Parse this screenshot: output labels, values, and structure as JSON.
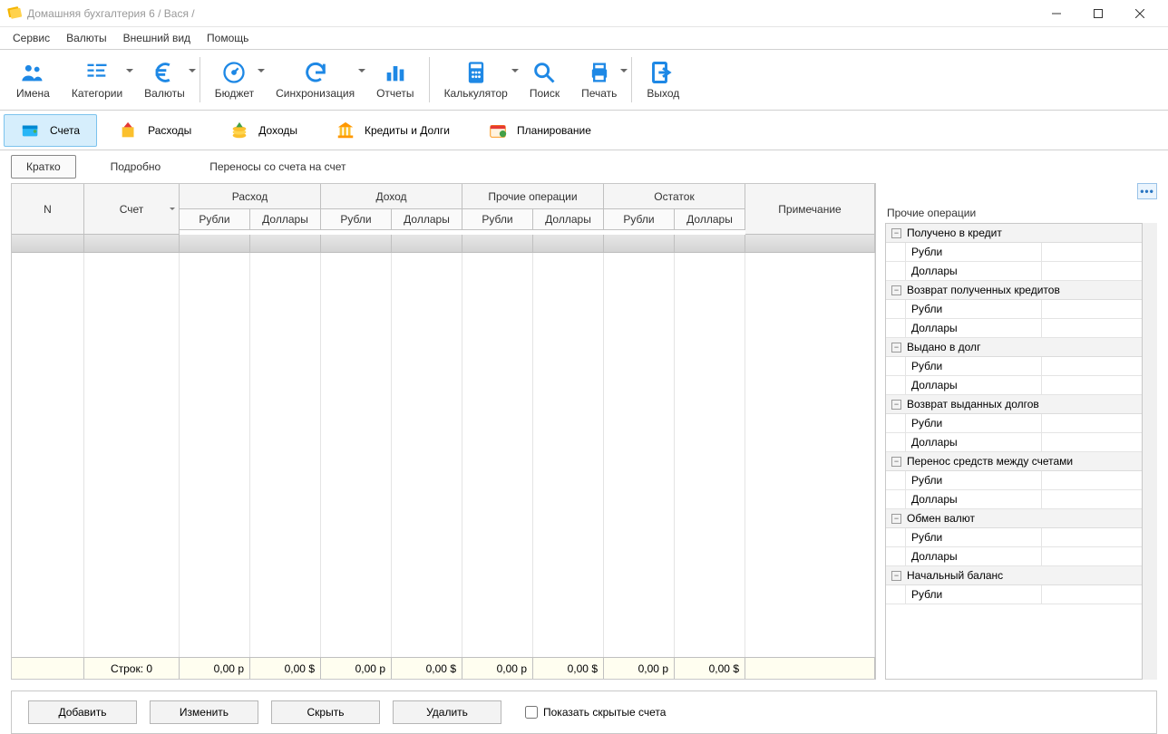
{
  "window": {
    "title": "Домашняя бухгалтерия 6  / Вася /"
  },
  "menus": [
    "Сервис",
    "Валюты",
    "Внешний вид",
    "Помощь"
  ],
  "toolbar": {
    "names": {
      "label": "Имена",
      "color": "#1e88e5"
    },
    "cats": {
      "label": "Категории",
      "color": "#1e88e5"
    },
    "curr": {
      "label": "Валюты",
      "color": "#1e88e5"
    },
    "budget": {
      "label": "Бюджет",
      "color": "#1e88e5"
    },
    "sync": {
      "label": "Синхронизация",
      "color": "#1e88e5"
    },
    "reports": {
      "label": "Отчеты",
      "color": "#1e88e5"
    },
    "calc": {
      "label": "Калькулятор",
      "color": "#1e88e5"
    },
    "search": {
      "label": "Поиск",
      "color": "#1e88e5"
    },
    "print": {
      "label": "Печать",
      "color": "#1e88e5"
    },
    "exit": {
      "label": "Выход",
      "color": "#1e88e5"
    }
  },
  "navtabs": {
    "accounts": "Счета",
    "expenses": "Расходы",
    "income": "Доходы",
    "credits": "Кредиты и Долги",
    "planning": "Планирование"
  },
  "subtabs": {
    "brief": "Кратко",
    "detail": "Подробно",
    "transfers": "Переносы со счета на счет"
  },
  "grid": {
    "cols_top": {
      "n": "N",
      "acct": "Счет",
      "expense": "Расход",
      "income": "Доход",
      "other": "Прочие операции",
      "balance": "Остаток",
      "note": "Примечание"
    },
    "sub_rub": "Рубли",
    "sub_usd": "Доллары",
    "footer": {
      "rows_label": "Строк: 0",
      "vals": [
        "0,00 р",
        "0,00 $",
        "0,00 р",
        "0,00 $",
        "0,00 р",
        "0,00 $",
        "0,00 р",
        "0,00 $"
      ]
    }
  },
  "side": {
    "title": "Прочие операции",
    "currency_rub": "Рубли",
    "currency_usd": "Доллары",
    "groups": [
      "Получено в кредит",
      "Возврат полученных кредитов",
      "Выдано в долг",
      "Возврат выданных долгов",
      "Перенос средств между счетами",
      "Обмен валют",
      "Начальный баланс"
    ]
  },
  "buttons": {
    "add": "Добавить",
    "edit": "Изменить",
    "hide": "Скрыть",
    "delete": "Удалить",
    "show_hidden": "Показать скрытые счета"
  },
  "colors": {
    "accent": "#1e88e5",
    "tab_active_bg": "#d6eefc",
    "tab_active_border": "#7cc3ed"
  }
}
